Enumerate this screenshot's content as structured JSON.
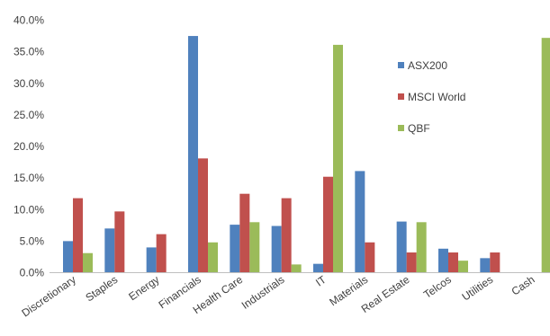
{
  "chart_data": {
    "type": "bar",
    "categories": [
      "Discretionary",
      "Staples",
      "Energy",
      "Financials",
      "Health Care",
      "Industrials",
      "IT",
      "Materials",
      "Real Estate",
      "Telcos",
      "Utilities",
      "Cash"
    ],
    "series": [
      {
        "name": "ASX200",
        "color": "#4f81bd",
        "values": [
          5.0,
          7.0,
          4.0,
          37.5,
          7.6,
          7.4,
          1.4,
          16.1,
          8.1,
          3.8,
          2.3,
          0.0
        ]
      },
      {
        "name": "MSCI World",
        "color": "#c0504d",
        "values": [
          11.8,
          9.7,
          6.1,
          18.1,
          12.5,
          11.8,
          15.2,
          4.8,
          3.2,
          3.2,
          3.2,
          0.0
        ]
      },
      {
        "name": "QBF",
        "color": "#9bbb59",
        "values": [
          3.1,
          0.0,
          0.0,
          4.8,
          8.0,
          1.3,
          36.1,
          0.0,
          8.0,
          1.9,
          0.0,
          37.2
        ]
      }
    ],
    "yticks": [
      "0.0%",
      "5.0%",
      "10.0%",
      "15.0%",
      "20.0%",
      "25.0%",
      "30.0%",
      "35.0%",
      "40.0%"
    ],
    "ylim": [
      0,
      40
    ],
    "legend_position": "right",
    "title": "",
    "xlabel": "",
    "ylabel": ""
  }
}
